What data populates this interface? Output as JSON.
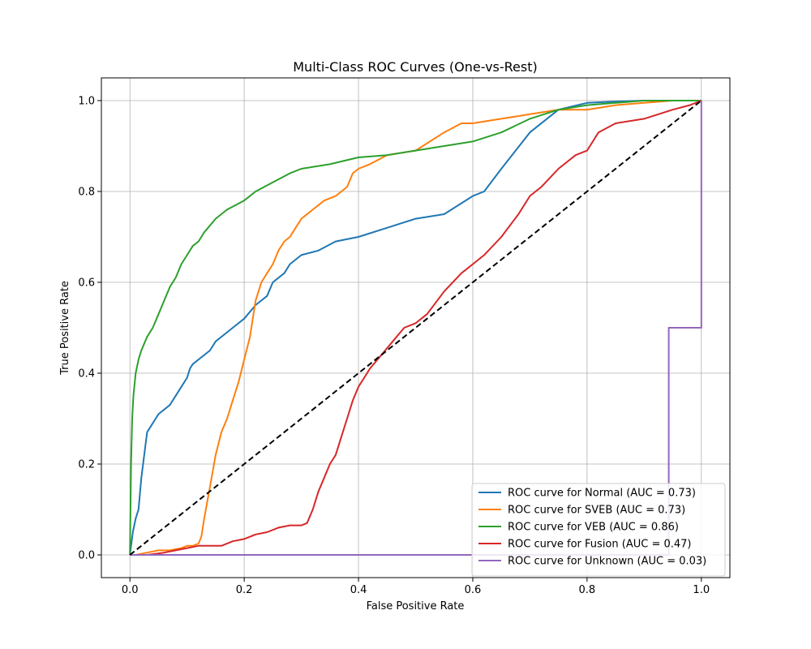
{
  "chart_data": {
    "type": "line",
    "title": "Multi-Class ROC Curves (One-vs-Rest)",
    "xlabel": "False Positive Rate",
    "ylabel": "True Positive Rate",
    "xlim": [
      -0.05,
      1.05
    ],
    "ylim": [
      -0.05,
      1.05
    ],
    "xticks": [
      "0.0",
      "0.2",
      "0.4",
      "0.6",
      "0.8",
      "1.0"
    ],
    "yticks": [
      "0.0",
      "0.2",
      "0.4",
      "0.6",
      "0.8",
      "1.0"
    ],
    "grid": true,
    "legend_position": "lower right",
    "reference_line": {
      "style": "dashed",
      "color": "#000000",
      "x": [
        0,
        1
      ],
      "y": [
        0,
        1
      ]
    },
    "series": [
      {
        "name": "ROC curve for Normal (AUC = 0.73)",
        "color": "#1f77b4",
        "x": [
          0,
          0.005,
          0.01,
          0.015,
          0.02,
          0.03,
          0.035,
          0.05,
          0.07,
          0.09,
          0.1,
          0.105,
          0.11,
          0.14,
          0.15,
          0.17,
          0.18,
          0.2,
          0.22,
          0.24,
          0.25,
          0.27,
          0.28,
          0.3,
          0.33,
          0.36,
          0.4,
          0.45,
          0.5,
          0.55,
          0.6,
          0.62,
          0.65,
          0.7,
          0.75,
          0.8,
          0.85,
          0.9,
          0.95,
          1.0
        ],
        "y": [
          0,
          0.05,
          0.08,
          0.1,
          0.17,
          0.27,
          0.28,
          0.31,
          0.33,
          0.37,
          0.39,
          0.41,
          0.42,
          0.45,
          0.47,
          0.49,
          0.5,
          0.52,
          0.55,
          0.57,
          0.6,
          0.62,
          0.64,
          0.66,
          0.67,
          0.69,
          0.7,
          0.72,
          0.74,
          0.75,
          0.79,
          0.8,
          0.85,
          0.93,
          0.98,
          0.995,
          0.998,
          1.0,
          1.0,
          1.0
        ]
      },
      {
        "name": "ROC curve for SVEB (AUC = 0.73)",
        "color": "#ff7f0e",
        "x": [
          0,
          0.01,
          0.03,
          0.05,
          0.07,
          0.09,
          0.1,
          0.11,
          0.12,
          0.125,
          0.13,
          0.14,
          0.15,
          0.16,
          0.17,
          0.18,
          0.19,
          0.2,
          0.21,
          0.215,
          0.22,
          0.23,
          0.24,
          0.25,
          0.26,
          0.27,
          0.28,
          0.29,
          0.3,
          0.32,
          0.34,
          0.36,
          0.38,
          0.39,
          0.4,
          0.42,
          0.45,
          0.5,
          0.55,
          0.58,
          0.6,
          0.65,
          0.7,
          0.75,
          0.8,
          0.85,
          0.9,
          0.95,
          1.0
        ],
        "y": [
          0,
          0.0,
          0.005,
          0.01,
          0.01,
          0.015,
          0.02,
          0.02,
          0.025,
          0.04,
          0.08,
          0.15,
          0.22,
          0.27,
          0.3,
          0.34,
          0.38,
          0.43,
          0.48,
          0.52,
          0.56,
          0.6,
          0.62,
          0.64,
          0.67,
          0.69,
          0.7,
          0.72,
          0.74,
          0.76,
          0.78,
          0.79,
          0.81,
          0.84,
          0.85,
          0.86,
          0.88,
          0.89,
          0.93,
          0.95,
          0.95,
          0.96,
          0.97,
          0.98,
          0.98,
          0.99,
          0.995,
          1.0,
          1.0
        ]
      },
      {
        "name": "ROC curve for VEB (AUC = 0.86)",
        "color": "#2ca02c",
        "x": [
          0,
          0.002,
          0.004,
          0.006,
          0.01,
          0.015,
          0.02,
          0.03,
          0.04,
          0.05,
          0.06,
          0.07,
          0.08,
          0.09,
          0.1,
          0.11,
          0.12,
          0.13,
          0.15,
          0.17,
          0.2,
          0.22,
          0.25,
          0.28,
          0.3,
          0.35,
          0.4,
          0.45,
          0.5,
          0.55,
          0.6,
          0.65,
          0.7,
          0.75,
          0.8,
          0.85,
          0.9,
          0.95,
          1.0
        ],
        "y": [
          0,
          0.2,
          0.3,
          0.35,
          0.4,
          0.43,
          0.45,
          0.48,
          0.5,
          0.53,
          0.56,
          0.59,
          0.61,
          0.64,
          0.66,
          0.68,
          0.69,
          0.71,
          0.74,
          0.76,
          0.78,
          0.8,
          0.82,
          0.84,
          0.85,
          0.86,
          0.875,
          0.88,
          0.89,
          0.9,
          0.91,
          0.93,
          0.96,
          0.98,
          0.99,
          0.995,
          1.0,
          1.0,
          1.0
        ]
      },
      {
        "name": "ROC curve for Fusion (AUC = 0.47)",
        "color": "#d62728",
        "x": [
          0,
          0.03,
          0.06,
          0.08,
          0.1,
          0.12,
          0.14,
          0.16,
          0.18,
          0.2,
          0.22,
          0.24,
          0.26,
          0.28,
          0.3,
          0.31,
          0.32,
          0.33,
          0.34,
          0.35,
          0.36,
          0.37,
          0.38,
          0.39,
          0.4,
          0.41,
          0.42,
          0.44,
          0.46,
          0.48,
          0.5,
          0.52,
          0.55,
          0.58,
          0.6,
          0.62,
          0.65,
          0.68,
          0.7,
          0.72,
          0.75,
          0.78,
          0.8,
          0.82,
          0.85,
          0.9,
          0.95,
          0.98,
          1.0
        ],
        "y": [
          0,
          0.0,
          0.005,
          0.01,
          0.015,
          0.02,
          0.02,
          0.02,
          0.03,
          0.035,
          0.045,
          0.05,
          0.06,
          0.065,
          0.065,
          0.07,
          0.1,
          0.14,
          0.17,
          0.2,
          0.22,
          0.26,
          0.3,
          0.34,
          0.37,
          0.39,
          0.41,
          0.44,
          0.47,
          0.5,
          0.51,
          0.53,
          0.58,
          0.62,
          0.64,
          0.66,
          0.7,
          0.75,
          0.79,
          0.81,
          0.85,
          0.88,
          0.89,
          0.93,
          0.95,
          0.96,
          0.98,
          0.99,
          1.0
        ]
      },
      {
        "name": "ROC curve for Unknown (AUC = 0.03)",
        "color": "#9467bd",
        "x": [
          0,
          0.943,
          0.943,
          0.943,
          1.0,
          1.0
        ],
        "y": [
          0,
          0,
          0.2,
          0.5,
          0.5,
          1.0
        ]
      }
    ]
  }
}
